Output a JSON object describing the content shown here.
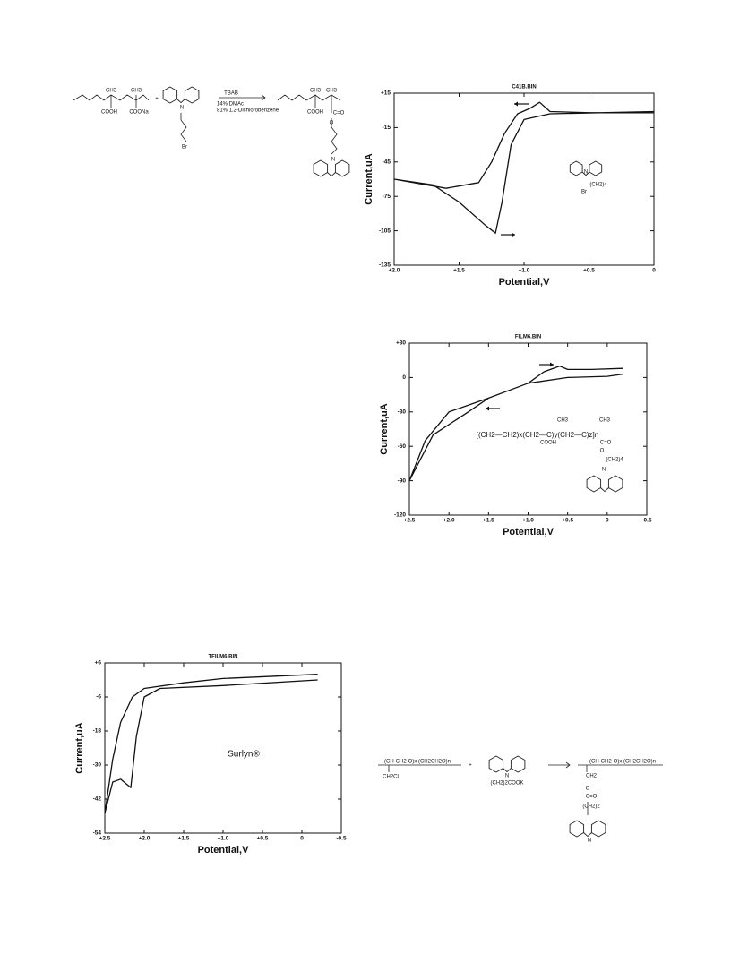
{
  "chart_data": [
    {
      "type": "line",
      "title": "C41B.BIN",
      "x_label": "Potential,V",
      "y_label": "Current,uA",
      "xlim": [
        2.0,
        0
      ],
      "ylim": [
        -135,
        15
      ],
      "xticks": [
        {
          "value": 2.0,
          "label": "+2.0"
        },
        {
          "value": 1.5,
          "label": "+1.5"
        },
        {
          "value": 1.0,
          "label": "+1.0"
        },
        {
          "value": 0.5,
          "label": "+0.5"
        },
        0
      ],
      "yticks": [
        {
          "value": 15,
          "label": "+15"
        },
        -15,
        -45,
        -75,
        -105,
        -135
      ],
      "inset_labels": [
        "N",
        "(CH2)4",
        "Br"
      ],
      "series": [
        {
          "color": "#111111",
          "x": [
            0,
            0.5,
            0.8,
            0.88,
            0.95,
            1.05,
            1.15,
            1.25,
            1.35,
            1.6,
            2.0,
            1.7,
            1.5,
            1.3,
            1.22,
            1.17,
            1.1,
            1.0,
            0.8,
            0
          ],
          "values": [
            -2,
            -2,
            -1,
            7,
            2,
            -3,
            -20,
            -45,
            -63,
            -68,
            -60,
            -65,
            -80,
            -100,
            -107,
            -80,
            -30,
            -8,
            -3,
            -1
          ]
        }
      ]
    },
    {
      "type": "line",
      "title": "FILM6.BIN",
      "x_label": "Potential,V",
      "y_label": "Current,uA",
      "xlim": [
        2.5,
        -0.5
      ],
      "ylim": [
        -120,
        30
      ],
      "xticks": [
        {
          "value": 2.5,
          "label": "+2.5"
        },
        {
          "value": 2.0,
          "label": "+2.0"
        },
        {
          "value": 1.5,
          "label": "+1.5"
        },
        {
          "value": 1.0,
          "label": "+1.0"
        },
        {
          "value": 0.5,
          "label": "+0.5"
        },
        0,
        -0.5
      ],
      "yticks": [
        {
          "value": 30,
          "label": "+30"
        },
        0,
        -30,
        -60,
        -90,
        -120
      ],
      "inset_labels": [
        "CH3",
        "CH3",
        "[(CH2—CH2)x(CH2—C)y(CH2—C)z]n",
        "COOH",
        "C=O",
        "O",
        "(CH2)4",
        "N"
      ],
      "series": [
        {
          "color": "#111111",
          "x": [
            -0.2,
            0.2,
            0.5,
            0.6,
            0.8,
            1.0,
            1.5,
            2.0,
            2.3,
            2.5,
            2.2,
            1.8,
            1.5,
            1.0,
            0.5,
            0,
            -0.2
          ],
          "values": [
            8,
            7,
            7,
            10,
            5,
            -5,
            -18,
            -30,
            -55,
            -90,
            -50,
            -32,
            -18,
            -5,
            0,
            1,
            3
          ]
        }
      ]
    },
    {
      "type": "line",
      "title": "TFILM6.BIN",
      "x_label": "Potential,V",
      "y_label": "Current,uA",
      "xlim": [
        2.5,
        -0.5
      ],
      "ylim": [
        -54,
        6
      ],
      "xticks": [
        {
          "value": 2.5,
          "label": "+2.5"
        },
        {
          "value": 2.0,
          "label": "+2.0"
        },
        {
          "value": 1.5,
          "label": "+1.5"
        },
        {
          "value": 1.0,
          "label": "+1.0"
        },
        {
          "value": 0.5,
          "label": "+0.5"
        },
        0,
        -0.5
      ],
      "yticks": [
        {
          "value": 6,
          "label": "+6"
        },
        -6,
        -18,
        -30,
        -42,
        -54
      ],
      "annotation": "Surlyn®",
      "series": [
        {
          "color": "#111111",
          "x": [
            -0.2,
            1.0,
            1.5,
            2.0,
            2.15,
            2.3,
            2.4,
            2.5,
            2.4,
            2.3,
            2.17,
            2.1,
            2.0,
            1.8,
            1.0,
            -0.2
          ],
          "values": [
            2,
            0.5,
            -1,
            -3,
            -6,
            -15,
            -28,
            -47,
            -36,
            -35,
            -38,
            -20,
            -6,
            -3,
            -2,
            0
          ]
        }
      ]
    }
  ],
  "scheme_1": {
    "labels": [
      "CH3",
      "CH3",
      "COOH",
      "COONa",
      "+",
      "N",
      "Br",
      "TBAB",
      "14% DMAc",
      "81% 1,2-Dichlorobenzene",
      "CH3",
      "CH3",
      "COOH",
      "C=O",
      "O",
      "N"
    ]
  },
  "scheme_2": {
    "labels": [
      "(CH-CH2-O)x (CH2CH2O)n",
      "CH2Cl",
      "+",
      "N",
      "(CH2)2COOK",
      "(CH-CH2-O)x (CH2CH2O)n",
      "CH2",
      "O",
      "C=O",
      "(CH2)2",
      "N"
    ]
  }
}
